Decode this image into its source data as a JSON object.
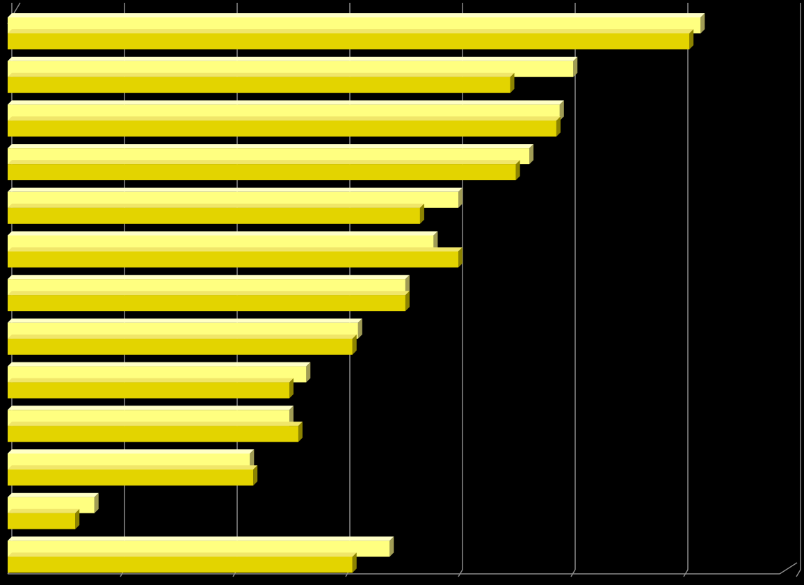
{
  "chart_data": {
    "type": "bar",
    "orientation": "horizontal",
    "style": "3d-clustered",
    "title": "",
    "xlabel": "",
    "ylabel": "",
    "grid": true,
    "legend": "none",
    "xlim": [
      0,
      7
    ],
    "categories": [
      "",
      "",
      "",
      "",
      "",
      "",
      "",
      "",
      "",
      "",
      "",
      "",
      ""
    ],
    "series": [
      {
        "values": [
          6.15,
          5.02,
          4.9,
          4.63,
          4.0,
          3.78,
          3.53,
          3.11,
          2.65,
          2.5,
          2.15,
          0.77,
          3.39
        ],
        "color_front": "#FFFF80",
        "color_top": "#FFFFC6",
        "color_side": "#A09C55"
      },
      {
        "values": [
          6.05,
          4.46,
          4.87,
          4.51,
          3.66,
          4.0,
          3.53,
          3.06,
          2.5,
          2.58,
          2.18,
          0.6,
          3.06
        ],
        "color_front": "#E3D400",
        "color_top": "#F0E66A",
        "color_side": "#8C8300"
      }
    ],
    "background": "#000000",
    "gridline_color": "#8C8C8C"
  }
}
